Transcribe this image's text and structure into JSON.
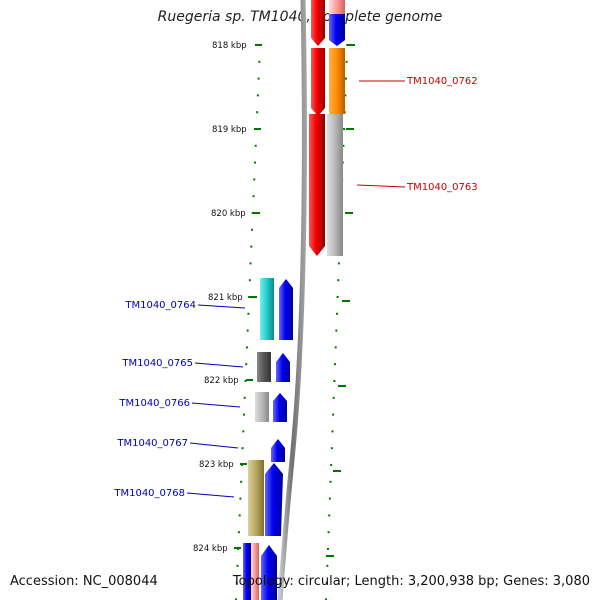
{
  "title": "Ruegeria sp. TM1040, complete genome",
  "accession": "Accession: NC_008044",
  "summary": "Topology: circular; Length: 3,200,938 bp; Genes: 3,080",
  "colors": {
    "forward_strand": "#0000ee",
    "reverse_strand": "#ee0000",
    "backbone": "#808080",
    "ticks": "#007700",
    "highlight_right": "#cc0000",
    "highlight_left": "#0000bb"
  },
  "ticks": [
    {
      "label": "818 kbp"
    },
    {
      "label": "819 kbp"
    },
    {
      "label": "820 kbp"
    },
    {
      "label": "821 kbp"
    },
    {
      "label": "822 kbp"
    },
    {
      "label": "823 kbp"
    },
    {
      "label": "824 kbp"
    }
  ],
  "genes": [
    {
      "label": "TM1040_0762",
      "color": "#ff8c00",
      "side": "right"
    },
    {
      "label": "TM1040_0763",
      "color": "#b8b8b8",
      "side": "right"
    },
    {
      "label": "TM1040_0764",
      "color": "#22cccc",
      "side": "left"
    },
    {
      "label": "TM1040_0765",
      "color": "#555555",
      "side": "left"
    },
    {
      "label": "TM1040_0766",
      "color": "#b8b8b8",
      "side": "left"
    },
    {
      "label": "TM1040_0767",
      "color": "#0000ee",
      "side": "left"
    },
    {
      "label": "TM1040_0768",
      "color": "#b8a860",
      "side": "left"
    }
  ]
}
